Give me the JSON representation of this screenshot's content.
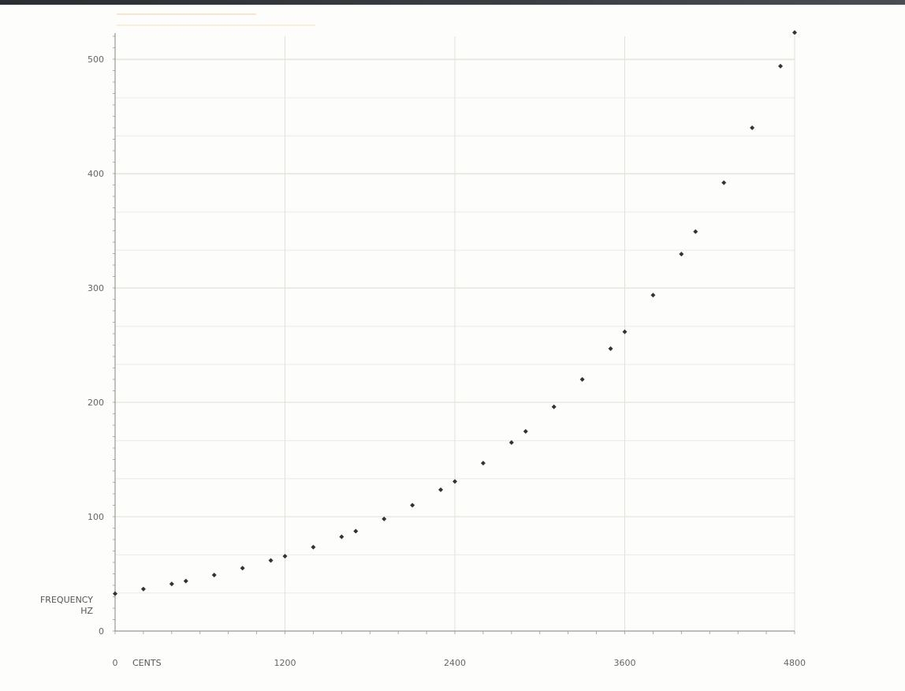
{
  "chart_data": {
    "type": "scatter",
    "title": "",
    "xlabel": "CENTS",
    "ylabel": "FREQUENCY HZ",
    "xlim": [
      0,
      4800
    ],
    "ylim": [
      0,
      520
    ],
    "x_ticks": [
      0,
      1200,
      2400,
      3600,
      4800
    ],
    "x_tick_labels": [
      "0",
      "1200",
      "2400",
      "3600",
      "4800"
    ],
    "y_ticks": [
      0,
      100,
      200,
      300,
      400,
      500
    ],
    "y_tick_labels": [
      "0",
      "100",
      "200",
      "300",
      "400",
      "500"
    ],
    "grid": true,
    "series": [
      {
        "color": "#333333",
        "points": [
          {
            "x": 0,
            "y": 32.7
          },
          {
            "x": 200,
            "y": 36.7
          },
          {
            "x": 400,
            "y": 41.2
          },
          {
            "x": 500,
            "y": 43.7
          },
          {
            "x": 700,
            "y": 49.0
          },
          {
            "x": 900,
            "y": 55.0
          },
          {
            "x": 1100,
            "y": 61.7
          },
          {
            "x": 1200,
            "y": 65.4
          },
          {
            "x": 1400,
            "y": 73.4
          },
          {
            "x": 1600,
            "y": 82.4
          },
          {
            "x": 1700,
            "y": 87.3
          },
          {
            "x": 1900,
            "y": 98.0
          },
          {
            "x": 2100,
            "y": 110.0
          },
          {
            "x": 2300,
            "y": 123.5
          },
          {
            "x": 2400,
            "y": 130.8
          },
          {
            "x": 2600,
            "y": 146.8
          },
          {
            "x": 2800,
            "y": 164.8
          },
          {
            "x": 2900,
            "y": 174.6
          },
          {
            "x": 3100,
            "y": 196.0
          },
          {
            "x": 3300,
            "y": 220.0
          },
          {
            "x": 3500,
            "y": 246.9
          },
          {
            "x": 3600,
            "y": 261.6
          },
          {
            "x": 3800,
            "y": 293.7
          },
          {
            "x": 4000,
            "y": 329.6
          },
          {
            "x": 4100,
            "y": 349.2
          },
          {
            "x": 4300,
            "y": 392.0
          },
          {
            "x": 4500,
            "y": 440.0
          },
          {
            "x": 4700,
            "y": 493.9
          },
          {
            "x": 4800,
            "y": 523.3
          }
        ]
      }
    ]
  },
  "colors": {
    "background": "#fdfdfb",
    "grid": "#ecebe4",
    "axis": "#9a9a92",
    "points": "#333333",
    "accent_band": "#f6cfa2"
  }
}
